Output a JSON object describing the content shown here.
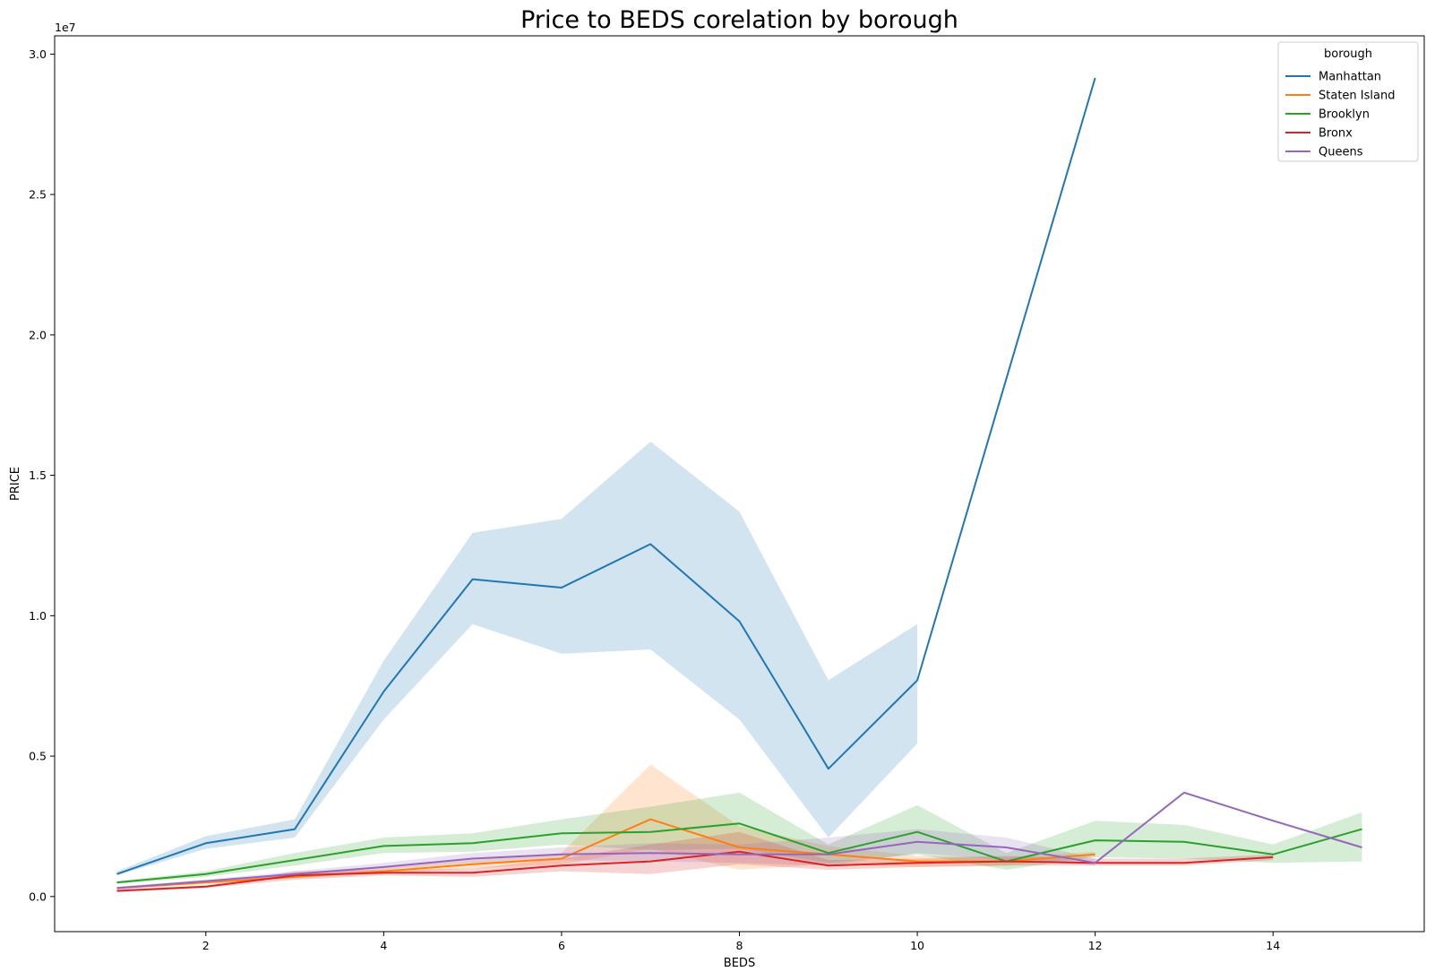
{
  "chart_data": {
    "type": "line",
    "title": "Price to BEDS corelation by borough",
    "xlabel": "BEDS",
    "ylabel": "PRICE",
    "y_offset_label": "1e7",
    "xlim": [
      0.3,
      15.7
    ],
    "ylim": [
      -1250000,
      30650000
    ],
    "x_ticks": [
      2,
      4,
      6,
      8,
      10,
      12,
      14
    ],
    "x_tick_labels": [
      "2",
      "4",
      "6",
      "8",
      "10",
      "12",
      "14"
    ],
    "y_ticks": [
      0,
      5000000,
      10000000,
      15000000,
      20000000,
      25000000,
      30000000
    ],
    "y_tick_labels": [
      "0.0",
      "0.5",
      "1.0",
      "1.5",
      "2.0",
      "2.5",
      "3.0"
    ],
    "grid": false,
    "legend": {
      "title": "borough",
      "position": "top-right"
    },
    "series": [
      {
        "name": "Manhattan",
        "color": "#1f77b4",
        "points": [
          [
            1,
            800000
          ],
          [
            2,
            1900000
          ],
          [
            3,
            2400000
          ],
          [
            4,
            7300000
          ],
          [
            5,
            11300000
          ],
          [
            6,
            11000000
          ],
          [
            7,
            12550000
          ],
          [
            8,
            9800000
          ],
          [
            9,
            4550000
          ],
          [
            10,
            7700000
          ],
          [
            12,
            29150000
          ]
        ],
        "ci_upper": [
          [
            1,
            900000
          ],
          [
            2,
            2150000
          ],
          [
            3,
            2750000
          ],
          [
            4,
            8400000
          ],
          [
            5,
            12950000
          ],
          [
            6,
            13450000
          ],
          [
            7,
            16200000
          ],
          [
            8,
            13700000
          ],
          [
            9,
            7700000
          ],
          [
            10,
            9700000
          ]
        ],
        "ci_lower": [
          [
            1,
            750000
          ],
          [
            2,
            1700000
          ],
          [
            3,
            2100000
          ],
          [
            4,
            6300000
          ],
          [
            5,
            9700000
          ],
          [
            6,
            8650000
          ],
          [
            7,
            8800000
          ],
          [
            8,
            6300000
          ],
          [
            9,
            2100000
          ],
          [
            10,
            5450000
          ]
        ]
      },
      {
        "name": "Staten Island",
        "color": "#ff7f0e",
        "points": [
          [
            1,
            300000
          ],
          [
            2,
            500000
          ],
          [
            3,
            700000
          ],
          [
            4,
            900000
          ],
          [
            5,
            1150000
          ],
          [
            6,
            1350000
          ],
          [
            7,
            2750000
          ],
          [
            8,
            1750000
          ],
          [
            9,
            1500000
          ],
          [
            10,
            1250000
          ],
          [
            11,
            1250000
          ],
          [
            12,
            1500000
          ]
        ],
        "ci_upper": [
          [
            1,
            350000
          ],
          [
            2,
            550000
          ],
          [
            3,
            800000
          ],
          [
            4,
            1050000
          ],
          [
            5,
            1300000
          ],
          [
            6,
            1550000
          ],
          [
            7,
            4700000
          ],
          [
            8,
            2500000
          ],
          [
            9,
            1800000
          ],
          [
            10,
            1450000
          ],
          [
            11,
            1400000
          ],
          [
            12,
            1600000
          ]
        ],
        "ci_lower": [
          [
            1,
            250000
          ],
          [
            2,
            450000
          ],
          [
            3,
            650000
          ],
          [
            4,
            800000
          ],
          [
            5,
            1000000
          ],
          [
            6,
            1150000
          ],
          [
            7,
            1700000
          ],
          [
            8,
            950000
          ],
          [
            9,
            1150000
          ],
          [
            10,
            1050000
          ],
          [
            11,
            1100000
          ],
          [
            12,
            1400000
          ]
        ]
      },
      {
        "name": "Brooklyn",
        "color": "#2ca02c",
        "points": [
          [
            1,
            500000
          ],
          [
            2,
            800000
          ],
          [
            3,
            1300000
          ],
          [
            4,
            1800000
          ],
          [
            5,
            1900000
          ],
          [
            6,
            2250000
          ],
          [
            7,
            2300000
          ],
          [
            8,
            2600000
          ],
          [
            9,
            1550000
          ],
          [
            10,
            2300000
          ],
          [
            11,
            1250000
          ],
          [
            12,
            2000000
          ],
          [
            13,
            1950000
          ],
          [
            14,
            1500000
          ],
          [
            15,
            2400000
          ]
        ],
        "ci_upper": [
          [
            1,
            550000
          ],
          [
            2,
            900000
          ],
          [
            3,
            1550000
          ],
          [
            4,
            2100000
          ],
          [
            5,
            2250000
          ],
          [
            6,
            2750000
          ],
          [
            7,
            3200000
          ],
          [
            8,
            3700000
          ],
          [
            9,
            1850000
          ],
          [
            10,
            3250000
          ],
          [
            11,
            1550000
          ],
          [
            12,
            2700000
          ],
          [
            13,
            2550000
          ],
          [
            14,
            1850000
          ],
          [
            15,
            3000000
          ]
        ],
        "ci_lower": [
          [
            1,
            450000
          ],
          [
            2,
            700000
          ],
          [
            3,
            1100000
          ],
          [
            4,
            1550000
          ],
          [
            5,
            1600000
          ],
          [
            6,
            1850000
          ],
          [
            7,
            1650000
          ],
          [
            8,
            1700000
          ],
          [
            9,
            1200000
          ],
          [
            10,
            1500000
          ],
          [
            11,
            950000
          ],
          [
            12,
            1400000
          ],
          [
            13,
            1350000
          ],
          [
            14,
            1200000
          ],
          [
            15,
            1250000
          ]
        ]
      },
      {
        "name": "Bronx",
        "color": "#d62728",
        "points": [
          [
            1,
            200000
          ],
          [
            2,
            350000
          ],
          [
            3,
            750000
          ],
          [
            4,
            850000
          ],
          [
            5,
            850000
          ],
          [
            6,
            1100000
          ],
          [
            7,
            1250000
          ],
          [
            8,
            1600000
          ],
          [
            9,
            1100000
          ],
          [
            10,
            1200000
          ],
          [
            11,
            1250000
          ],
          [
            12,
            1200000
          ],
          [
            13,
            1200000
          ],
          [
            14,
            1400000
          ]
        ],
        "ci_upper": [
          [
            1,
            250000
          ],
          [
            2,
            400000
          ],
          [
            3,
            900000
          ],
          [
            4,
            950000
          ],
          [
            5,
            1000000
          ],
          [
            6,
            1350000
          ],
          [
            7,
            1850000
          ],
          [
            8,
            2300000
          ],
          [
            9,
            1300000
          ],
          [
            10,
            1350000
          ],
          [
            11,
            1450000
          ],
          [
            12,
            1350000
          ],
          [
            13,
            1350000
          ],
          [
            14,
            1500000
          ]
        ],
        "ci_lower": [
          [
            1,
            150000
          ],
          [
            2,
            300000
          ],
          [
            3,
            600000
          ],
          [
            4,
            750000
          ],
          [
            5,
            700000
          ],
          [
            6,
            900000
          ],
          [
            7,
            800000
          ],
          [
            8,
            1150000
          ],
          [
            9,
            950000
          ],
          [
            10,
            1050000
          ],
          [
            11,
            1100000
          ],
          [
            12,
            1100000
          ],
          [
            13,
            1100000
          ],
          [
            14,
            1300000
          ]
        ]
      },
      {
        "name": "Queens",
        "color": "#9467bd",
        "points": [
          [
            1,
            300000
          ],
          [
            2,
            550000
          ],
          [
            3,
            800000
          ],
          [
            4,
            1050000
          ],
          [
            5,
            1350000
          ],
          [
            6,
            1500000
          ],
          [
            7,
            1550000
          ],
          [
            8,
            1500000
          ],
          [
            9,
            1500000
          ],
          [
            10,
            1950000
          ],
          [
            11,
            1750000
          ],
          [
            12,
            1200000
          ],
          [
            13,
            3700000
          ],
          [
            14,
            2700000
          ],
          [
            15,
            1750000
          ]
        ],
        "ci_upper": [
          [
            1,
            350000
          ],
          [
            2,
            600000
          ],
          [
            3,
            900000
          ],
          [
            4,
            1200000
          ],
          [
            5,
            1550000
          ],
          [
            6,
            1750000
          ],
          [
            7,
            1900000
          ],
          [
            8,
            1850000
          ],
          [
            9,
            2100000
          ],
          [
            10,
            2400000
          ],
          [
            11,
            2100000
          ],
          [
            12,
            1350000
          ]
        ],
        "ci_lower": [
          [
            1,
            250000
          ],
          [
            2,
            500000
          ],
          [
            3,
            700000
          ],
          [
            4,
            950000
          ],
          [
            5,
            1200000
          ],
          [
            6,
            1300000
          ],
          [
            7,
            1250000
          ],
          [
            8,
            1200000
          ],
          [
            9,
            1100000
          ],
          [
            10,
            1550000
          ],
          [
            11,
            1300000
          ],
          [
            12,
            1100000
          ]
        ]
      }
    ]
  }
}
